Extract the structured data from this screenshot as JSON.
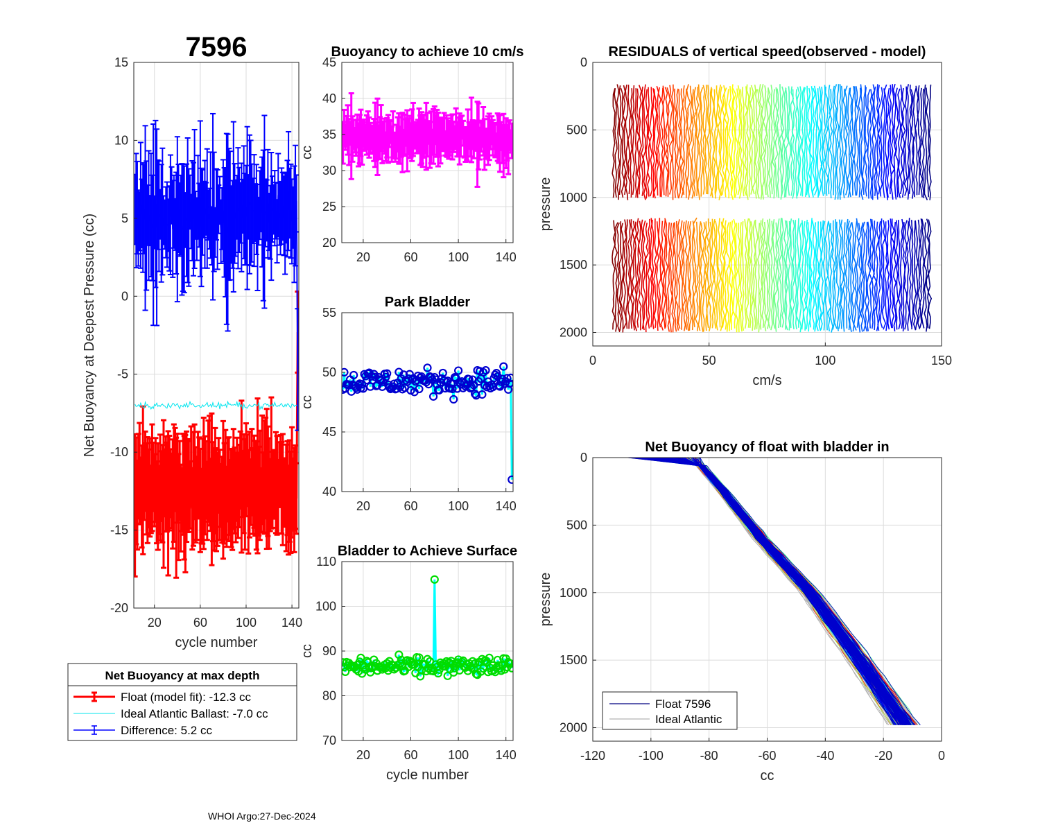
{
  "figure": {
    "float_id": "7596",
    "footer": "WHOI Argo:27-Dec-2024"
  },
  "chart_data": [
    {
      "id": "net-buoyancy",
      "type": "line",
      "title": "7596",
      "xlabel": "cycle number",
      "ylabel": "Net Buoyancy at Deepest Pressure (cc)",
      "xlim": [
        2,
        146
      ],
      "ylim": [
        -20,
        15
      ],
      "xticks": [
        20,
        60,
        100,
        140
      ],
      "yticks": [
        -20,
        -15,
        -10,
        -5,
        0,
        5,
        10,
        15
      ],
      "legend": {
        "title": "Net Buoyancy at max depth",
        "entries": [
          {
            "label": "Float (model fit): -12.3 cc",
            "color": "#ff0000"
          },
          {
            "label": "Ideal Atlantic Ballast:  -7.0 cc",
            "color": "#00e5ee"
          },
          {
            "label": "Difference:   5.2 cc",
            "color": "#0000ff"
          }
        ]
      },
      "series": [
        {
          "name": "Float (model fit)",
          "color": "#ff0000",
          "mean": -12.3,
          "spread": 2.0,
          "err": [
            2.0,
            5.0
          ],
          "x_start": 3,
          "x_end": 145,
          "end_jump": -2.3
        },
        {
          "name": "Ideal Atlantic Ballast",
          "color": "#00e5ee",
          "mean": -7.0,
          "spread": 0.3,
          "x_start": 3,
          "x_end": 145
        },
        {
          "name": "Difference",
          "color": "#0000ff",
          "mean": 5.2,
          "spread": 1.9,
          "err": [
            1.5,
            6.5
          ],
          "x_start": 3,
          "x_end": 145,
          "end_jump": -4.7
        }
      ]
    },
    {
      "id": "buoyancy-10cms",
      "type": "line",
      "title": "Buoyancy to achieve 10 cm/s",
      "ylabel": "cc",
      "xlim": [
        2,
        146
      ],
      "ylim": [
        20,
        45
      ],
      "xticks": [
        20,
        60,
        100,
        140
      ],
      "yticks": [
        20,
        25,
        30,
        35,
        40,
        45
      ],
      "series": [
        {
          "name": "buoyancy",
          "color": "#ff00ff",
          "mean": 34.6,
          "spread": 1.8,
          "err": [
            1.5,
            6.0
          ],
          "x_start": 3,
          "x_end": 145
        }
      ]
    },
    {
      "id": "park-bladder",
      "type": "line",
      "title": "Park Bladder",
      "ylabel": "cc",
      "xlim": [
        2,
        146
      ],
      "ylim": [
        40,
        55
      ],
      "xticks": [
        20,
        60,
        100,
        140
      ],
      "yticks": [
        40,
        45,
        50,
        55
      ],
      "series": [
        {
          "name": "park bladder",
          "line_color": "#00ffff",
          "marker_color": "#0000d0",
          "mean": 49.2,
          "spread": 1.6,
          "x_start": 3,
          "x_end": 145,
          "end_value": 41.0
        }
      ]
    },
    {
      "id": "bladder-surface",
      "type": "line",
      "title": "Bladder to Achieve Surface",
      "xlabel": "cycle number",
      "ylabel": "cc",
      "xlim": [
        2,
        146
      ],
      "ylim": [
        70,
        110
      ],
      "xticks": [
        20,
        60,
        100,
        140
      ],
      "yticks": [
        70,
        80,
        90,
        100,
        110
      ],
      "series": [
        {
          "name": "bladder to surface",
          "line_color": "#00ffff",
          "marker_color": "#00dd00",
          "mean": 86.5,
          "spread": 3.0,
          "x_start": 3,
          "x_end": 145,
          "peak": {
            "x": 80,
            "value": 106
          }
        }
      ]
    },
    {
      "id": "residuals",
      "type": "line",
      "title": "RESIDUALS of vertical speed(observed - model)",
      "xlabel": "cm/s",
      "ylabel": "pressure",
      "xlim": [
        0,
        150
      ],
      "ylim": [
        0,
        2100
      ],
      "y_reversed": true,
      "xticks": [
        0,
        50,
        100,
        150
      ],
      "yticks": [
        0,
        500,
        1000,
        1500,
        2000
      ],
      "profile_count": 145,
      "x_offset_range": [
        9,
        145
      ],
      "segments": [
        [
          180,
          1020
        ],
        [
          1170,
          2000
        ]
      ],
      "colormap": "jet-reversed"
    },
    {
      "id": "net-buoyancy-profile",
      "type": "line",
      "title": "Net Buoyancy of float with bladder in",
      "xlabel": "cc",
      "ylabel": "pressure",
      "xlim": [
        -120,
        0
      ],
      "ylim": [
        0,
        2100
      ],
      "y_reversed": true,
      "xticks": [
        -120,
        -100,
        -80,
        -60,
        -40,
        -20,
        0
      ],
      "yticks": [
        0,
        500,
        1000,
        1500,
        2000
      ],
      "legend": {
        "entries": [
          {
            "label": "Float 7596",
            "color": "#000080"
          },
          {
            "label": "Ideal Atlantic",
            "color": "#b4b4b4"
          }
        ]
      },
      "path": [
        [
          -108,
          0
        ],
        [
          -85,
          0
        ],
        [
          -75,
          250
        ],
        [
          -62,
          600
        ],
        [
          -45,
          1000
        ],
        [
          -28,
          1500
        ],
        [
          -12,
          2000
        ]
      ],
      "spread_cc": 4.5
    }
  ]
}
